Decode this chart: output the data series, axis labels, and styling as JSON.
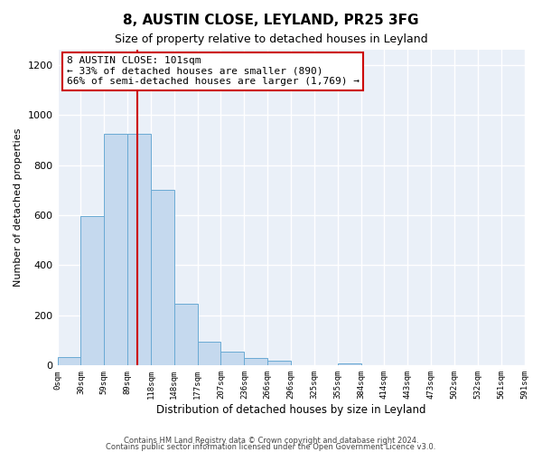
{
  "title": "8, AUSTIN CLOSE, LEYLAND, PR25 3FG",
  "subtitle": "Size of property relative to detached houses in Leyland",
  "xlabel": "Distribution of detached houses by size in Leyland",
  "ylabel": "Number of detached properties",
  "bin_labels": [
    "0sqm",
    "30sqm",
    "59sqm",
    "89sqm",
    "118sqm",
    "148sqm",
    "177sqm",
    "207sqm",
    "236sqm",
    "266sqm",
    "296sqm",
    "325sqm",
    "355sqm",
    "384sqm",
    "414sqm",
    "443sqm",
    "473sqm",
    "502sqm",
    "532sqm",
    "561sqm",
    "591sqm"
  ],
  "bar_values": [
    35,
    595,
    925,
    925,
    700,
    245,
    95,
    55,
    30,
    20,
    0,
    0,
    10,
    0,
    0,
    0,
    0,
    0,
    0,
    0
  ],
  "bar_color": "#c5d9ee",
  "bar_edge_color": "#6aaad4",
  "grid_color": "#d0d8e4",
  "vline_color": "#cc0000",
  "annotation_line1": "8 AUSTIN CLOSE: 101sqm",
  "annotation_line2": "← 33% of detached houses are smaller (890)",
  "annotation_line3": "66% of semi-detached houses are larger (1,769) →",
  "annotation_box_color": "#cc0000",
  "bg_color": "#eaf0f8",
  "ylim": [
    0,
    1260
  ],
  "footer1": "Contains HM Land Registry data © Crown copyright and database right 2024.",
  "footer2": "Contains public sector information licensed under the Open Government Licence v3.0."
}
